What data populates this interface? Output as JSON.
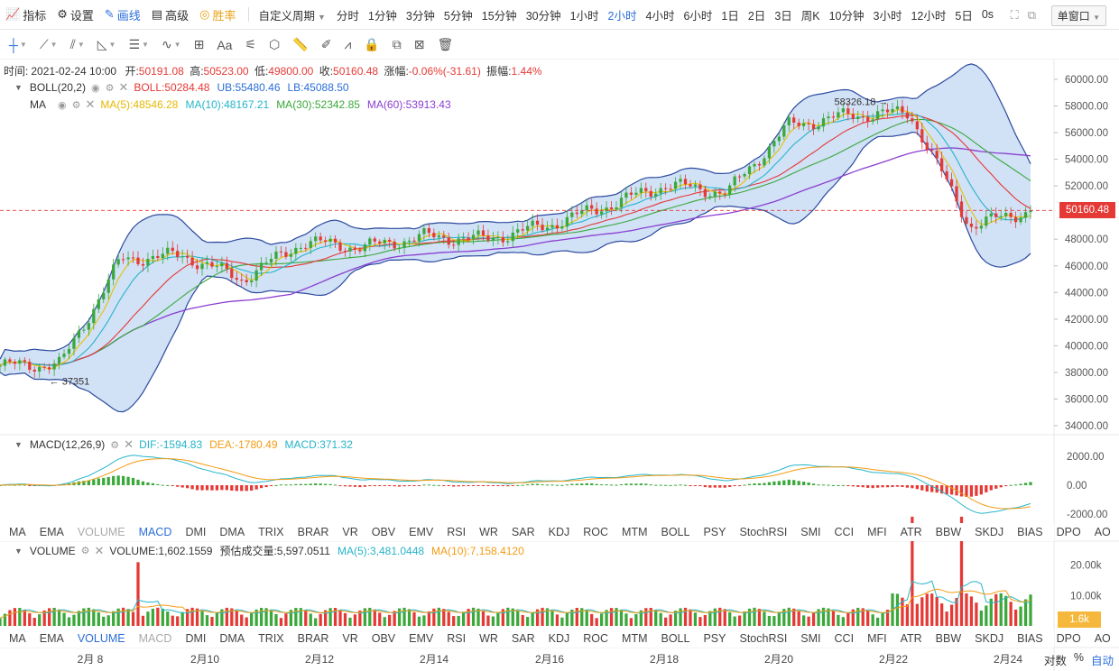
{
  "topbar": {
    "indicator_label": "指标",
    "settings_label": "设置",
    "draw_label": "画线",
    "advanced_label": "高级",
    "win_rate_label": "胜率",
    "custom_period_label": "自定义周期",
    "periods": [
      "分时",
      "1分钟",
      "3分钟",
      "5分钟",
      "15分钟",
      "30分钟",
      "1小时",
      "2小时",
      "4小时",
      "6小时",
      "1日",
      "2日",
      "3日",
      "周K",
      "10分钟",
      "3小时",
      "12小时",
      "5日",
      "0s"
    ],
    "active_period": "2小时",
    "window_select": "单窗口"
  },
  "drawing_tools": [
    "crosshair-icon",
    "trend-line-icon",
    "ray-line-icon",
    "angle-line-icon",
    "horizontal-lines-icon",
    "wave-icon",
    "grid-icon",
    "text-icon",
    "fib-icon",
    "shape-icon",
    "ruler-icon",
    "pencil-icon",
    "pattern-icon",
    "lock-icon",
    "copy-icon",
    "magnet-icon",
    "trash-icon"
  ],
  "drawing_text_tool_label": "Aa",
  "ohlc": {
    "time_label": "时间:",
    "time": "2021-02-24 10:00",
    "open_label": "开:",
    "open": "50191.08",
    "high_label": "高:",
    "high": "50523.00",
    "low_label": "低:",
    "low": "49800.00",
    "close_label": "收:",
    "close": "50160.48",
    "change_label": "涨幅:",
    "change": "-0.06%(-31.61)",
    "amplitude_label": "振幅:",
    "amplitude": "1.44%"
  },
  "boll": {
    "name": "BOLL(20,2)",
    "boll": "BOLL:50284.48",
    "ub": "UB:55480.46",
    "lb": "LB:45088.50"
  },
  "ma": {
    "name": "MA",
    "ma5": "MA(5):48546.28",
    "ma10": "MA(10):48167.21",
    "ma30": "MA(30):52342.85",
    "ma60": "MA(60):53913.43"
  },
  "macd": {
    "name": "MACD(12,26,9)",
    "dif": "DIF:-1594.83",
    "dea": "DEA:-1780.49",
    "macd": "MACD:371.32"
  },
  "volume": {
    "name": "VOLUME",
    "volume": "VOLUME:1,602.1559",
    "estimated": "预估成交量:5,597.0511",
    "ma5": "MA(5):3,481.0448",
    "ma10": "MA(10):7,158.4120"
  },
  "indicator_tabs": [
    "MA",
    "EMA",
    "VOLUME",
    "MACD",
    "DMI",
    "DMA",
    "TRIX",
    "BRAR",
    "VR",
    "OBV",
    "EMV",
    "RSI",
    "WR",
    "SAR",
    "KDJ",
    "ROC",
    "MTM",
    "BOLL",
    "PSY",
    "StochRSI",
    "SMI",
    "CCI",
    "MFI",
    "ATR",
    "BBW",
    "SKDJ",
    "BIAS",
    "DPO",
    "AO",
    "Position"
  ],
  "tabs_row1_active": "MACD",
  "tabs_row1_dim": "VOLUME",
  "tabs_row2_active": "VOLUME",
  "tabs_row2_dim": "MACD",
  "price_axis_labels": [
    "60000.00",
    "58000.00",
    "56000.00",
    "54000.00",
    "52000.00",
    "48000.00",
    "46000.00",
    "44000.00",
    "42000.00",
    "40000.00",
    "38000.00",
    "36000.00",
    "34000.00"
  ],
  "current_price_tag": "50160.48",
  "macd_axis_labels": [
    "2000.00",
    "0.00",
    "-2000.00"
  ],
  "volume_axis_labels": [
    "20.00k",
    "10.00k"
  ],
  "volume_current_tag": "1.6k",
  "date_labels": [
    "2月 8",
    "2月10",
    "2月12",
    "2月14",
    "2月16",
    "2月18",
    "2月20",
    "2月22",
    "2月24"
  ],
  "annotations": {
    "high_mark": "58326.18",
    "low_mark": "37351"
  },
  "axis_mode": {
    "log": "对数",
    "percent": "%",
    "auto": "自动"
  },
  "colors": {
    "up": "#3aa83a",
    "down": "#e53935",
    "accent": "#2a6ed8",
    "boll_fill": "#c9dcf5",
    "boll_line": "#2c4a9e"
  },
  "chart_data": {
    "type": "candlestick",
    "interval": "2小时",
    "price_range": [
      34000,
      60000
    ],
    "key_levels": {
      "swing_high": 58326.18,
      "swing_low": 37351,
      "last_close": 50160.48
    },
    "price_path_approx": [
      {
        "date": "2月 7",
        "close": 38500
      },
      {
        "date": "2月 8",
        "close": 38600
      },
      {
        "date": "2月 9",
        "close": 46500
      },
      {
        "date": "2月10",
        "close": 46800
      },
      {
        "date": "2月11",
        "close": 45000
      },
      {
        "date": "2月12",
        "close": 47800
      },
      {
        "date": "2月13",
        "close": 47400
      },
      {
        "date": "2月14",
        "close": 48200
      },
      {
        "date": "2月15",
        "close": 48000
      },
      {
        "date": "2月16",
        "close": 49000
      },
      {
        "date": "2月17",
        "close": 50500
      },
      {
        "date": "2月18",
        "close": 52100
      },
      {
        "date": "2月19",
        "close": 51500
      },
      {
        "date": "2月20",
        "close": 56500
      },
      {
        "date": "2月21",
        "close": 57300
      },
      {
        "date": "2月22",
        "close": 57500
      },
      {
        "date": "2月23",
        "close": 49000
      },
      {
        "date": "2月24",
        "close": 50160.48
      }
    ],
    "macd_range": [
      -2500,
      2500
    ],
    "volume_range": [
      0,
      22000
    ]
  }
}
